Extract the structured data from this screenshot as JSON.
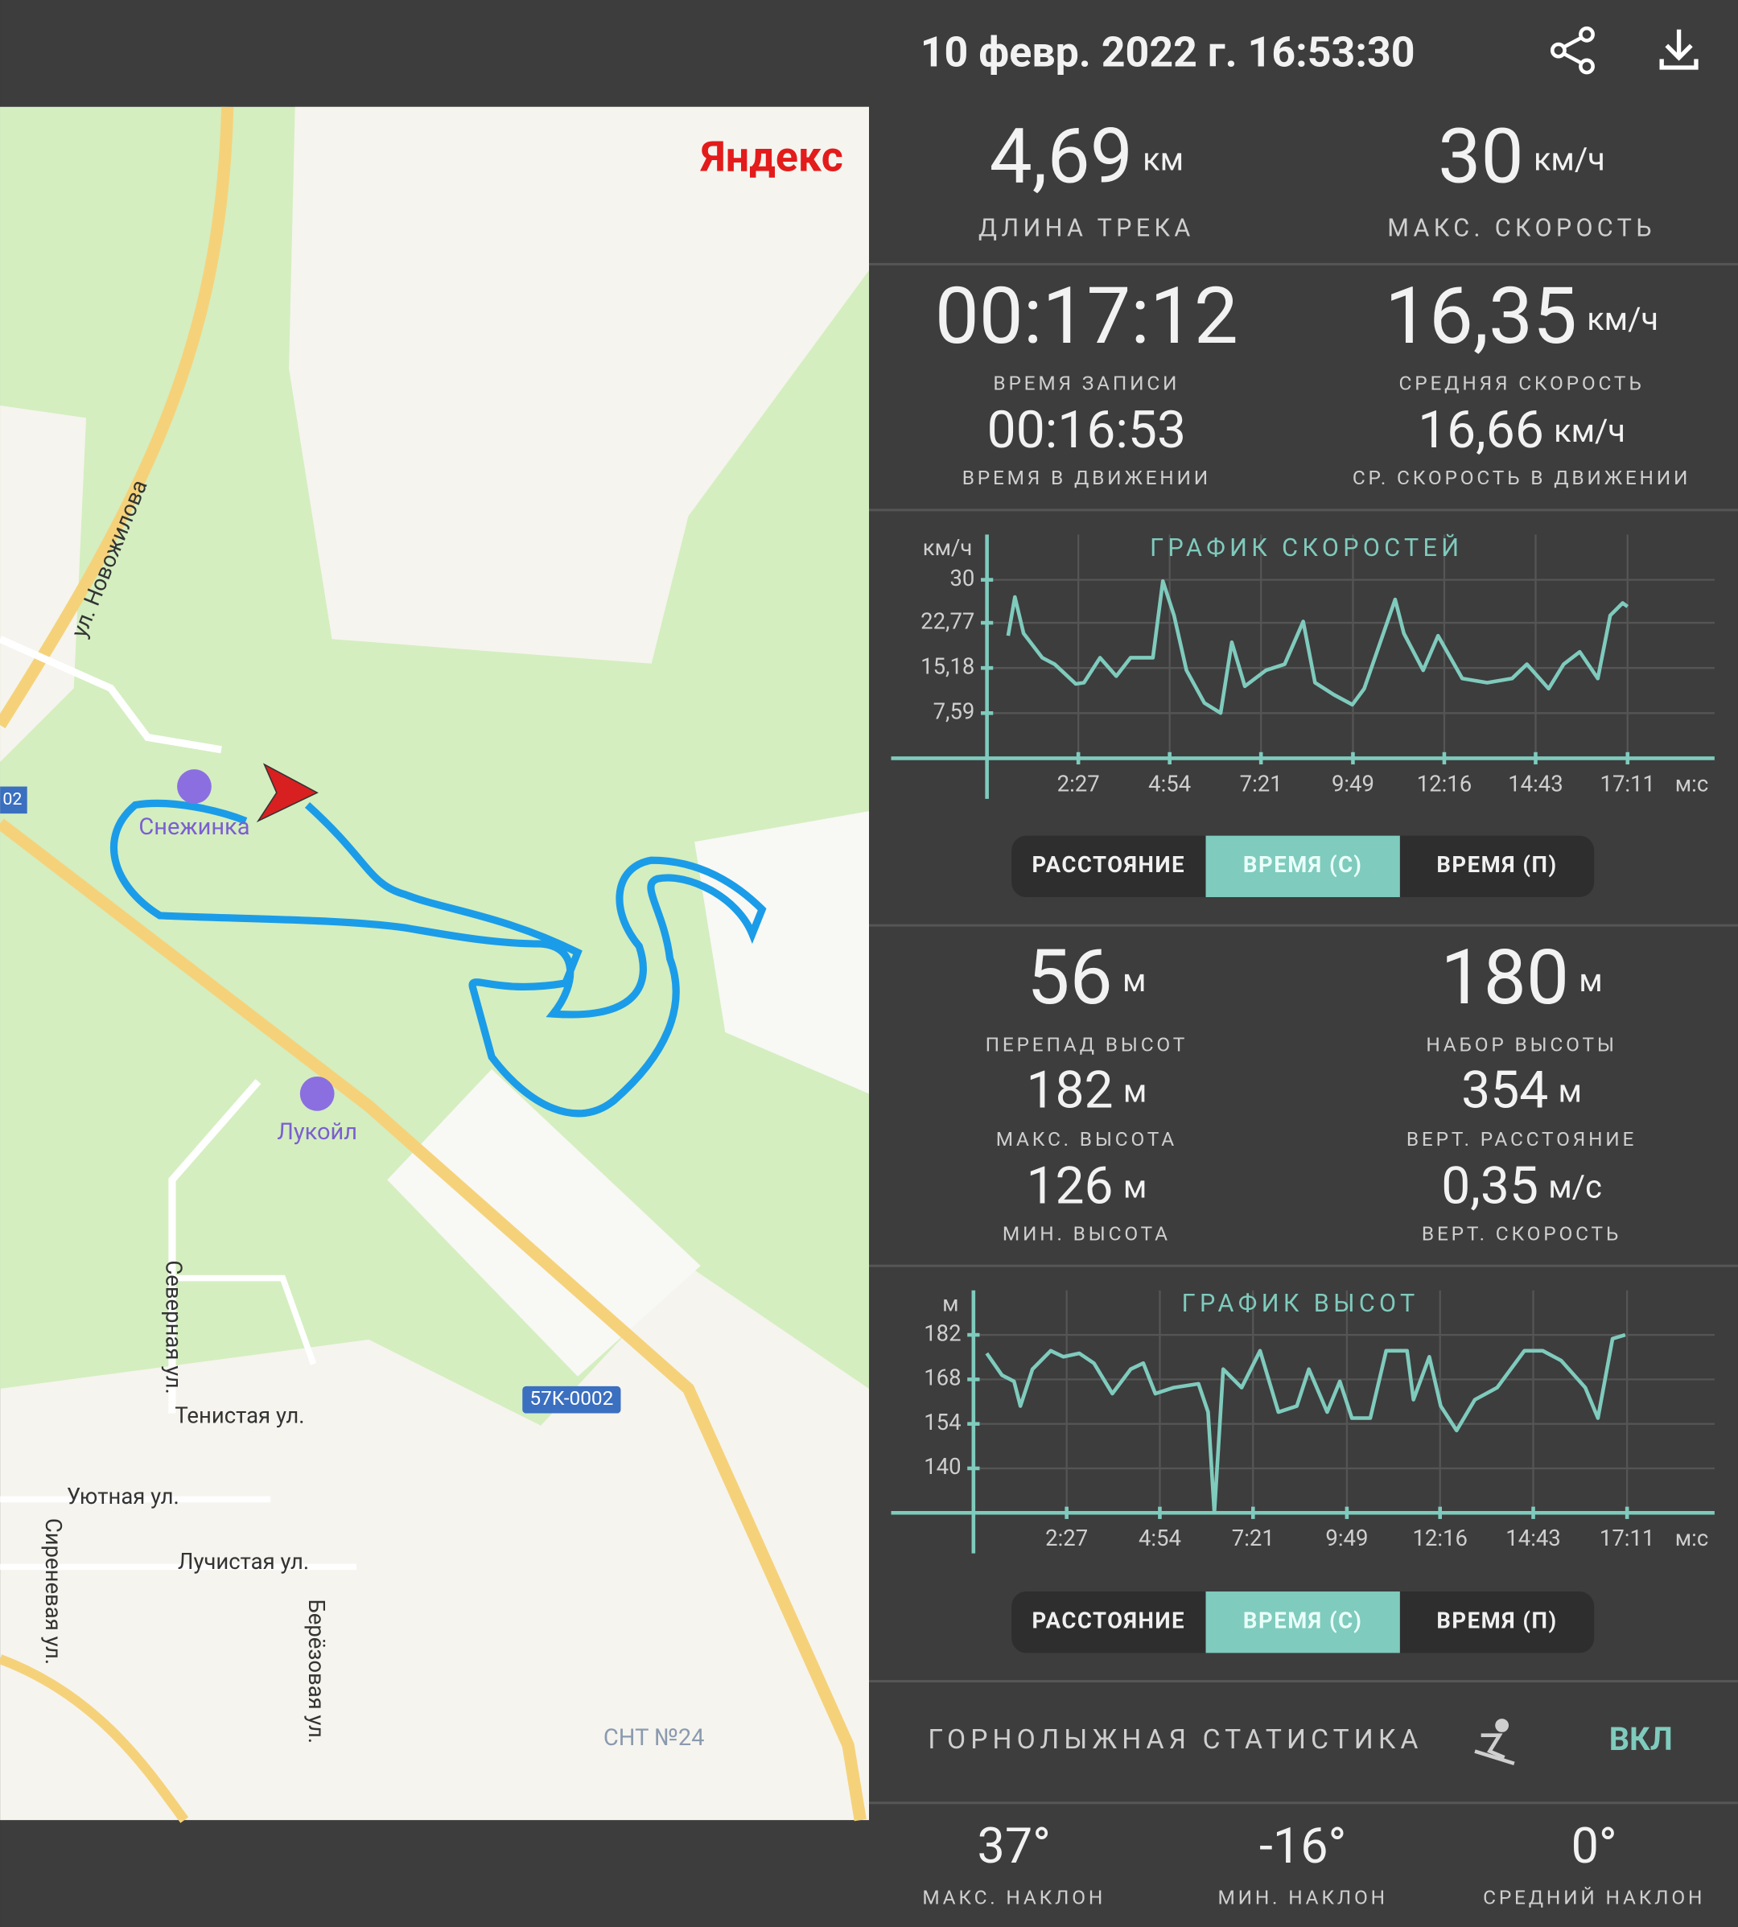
{
  "header": {
    "title": "10 февр. 2022 г. 16:53:30"
  },
  "map": {
    "brand": "Яндекс",
    "labels": [
      "ул. Новожилова",
      "Снежинка",
      "Лукойл",
      "Северная ул.",
      "Тенистая ул.",
      "Уютная ул.",
      "Лучистая ул.",
      "Сиреневая ул.",
      "Берёзовая ул.",
      "57К-0002",
      "СНТ №24",
      "02"
    ]
  },
  "stats": [
    {
      "value": "4,69",
      "unit": "км",
      "label": "ДЛИНА ТРЕКА"
    },
    {
      "value": "30",
      "unit": "км/ч",
      "label": "МАКС. СКОРОСТЬ"
    },
    {
      "value": "00:17:12",
      "unit": "",
      "label": "ВРЕМЯ ЗАПИСИ"
    },
    {
      "value": "16,35",
      "unit": "км/ч",
      "label": "СРЕДНЯЯ СКОРОСТЬ"
    },
    {
      "value": "00:16:53",
      "unit": "",
      "label": "ВРЕМЯ В ДВИЖЕНИИ"
    },
    {
      "value": "16,66",
      "unit": "км/ч",
      "label": "СР. СКОРОСТЬ В ДВИЖЕНИИ"
    }
  ],
  "speed_chart": {
    "type": "line",
    "title": "ГРАФИК СКОРОСТЕЙ",
    "y_label": "км/ч",
    "x_unit": "м:с",
    "color": "#7fcbbd",
    "grid": true,
    "x": [
      34,
      45,
      59,
      89,
      109,
      143,
      156,
      182,
      208,
      231,
      267,
      283,
      301,
      321,
      350,
      376,
      394,
      415,
      449,
      479,
      509,
      528,
      558,
      588,
      607,
      657,
      671,
      702,
      726,
      765,
      805,
      845,
      869,
      904,
      928,
      954,
      983,
      1003,
      1023,
      1031
    ],
    "values": [
      20.6,
      27.1,
      21,
      16.9,
      15.8,
      12.5,
      12.7,
      16.9,
      13.8,
      16.9,
      16.9,
      29.8,
      24,
      14.8,
      9.3,
      7.6,
      19.5,
      12.1,
      14.8,
      15.8,
      23,
      12.7,
      10.7,
      9,
      11.7,
      26.7,
      21,
      14.8,
      20.6,
      13.4,
      12.7,
      13.4,
      15.8,
      11.7,
      15.8,
      17.9,
      13.4,
      24,
      26.1,
      25.5
    ],
    "xlim": [
      0,
      1171
    ],
    "ylim": [
      0,
      37.6
    ],
    "xticks": [
      {
        "value": 147,
        "label": "2:27"
      },
      {
        "value": 294,
        "label": "4:54"
      },
      {
        "value": 441,
        "label": "7:21"
      },
      {
        "value": 589,
        "label": "9:49"
      },
      {
        "value": 736,
        "label": "12:16"
      },
      {
        "value": 883,
        "label": "14:43"
      },
      {
        "value": 1031,
        "label": "17:11"
      }
    ],
    "yticks": [
      {
        "value": 7.59,
        "label": "7,59"
      },
      {
        "value": 15.18,
        "label": "15,18"
      },
      {
        "value": 22.77,
        "label": "22,77"
      },
      30
    ],
    "toggles": [
      "РАССТОЯНИЕ",
      "ВРЕМЯ (С)",
      "ВРЕМЯ (П)"
    ],
    "active_toggle": 1
  },
  "altitude_stats": [
    {
      "value": "56",
      "unit": "м",
      "label": "ПЕРЕПАД ВЫСОТ"
    },
    {
      "value": "180",
      "unit": "м",
      "label": "НАБОР ВЫСОТЫ"
    },
    {
      "value": "182",
      "unit": "м",
      "label": "МАКС. ВЫСОТА"
    },
    {
      "value": "354",
      "unit": "м",
      "label": "ВЕРТ. РАССТОЯНИЕ"
    },
    {
      "value": "126",
      "unit": "м",
      "label": "МИН. ВЫСОТА"
    },
    {
      "value": "0,35",
      "unit": "м/с",
      "label": "ВЕРТ. СКОРОСТЬ"
    }
  ],
  "altitude_chart": {
    "type": "line",
    "title": "ГРАФИК ВЫСОТ",
    "y_label": "м",
    "x_unit": "м:с",
    "color": "#7fcbbd",
    "grid": true,
    "x": [
      21,
      45,
      64,
      74,
      93,
      122,
      142,
      167,
      190,
      219,
      248,
      268,
      287,
      316,
      355,
      370,
      380,
      394,
      423,
      452,
      481,
      510,
      529,
      558,
      578,
      597,
      626,
      651,
      684,
      694,
      719,
      737,
      762,
      791,
      826,
      869,
      898,
      927,
      965,
      985,
      1008,
      1028
    ],
    "values": [
      176.2,
      169.3,
      167.4,
      159.6,
      171.2,
      177,
      175.1,
      176.2,
      173.1,
      163.5,
      171.2,
      173.1,
      163.5,
      165.4,
      166.6,
      157.7,
      126,
      171.2,
      165.4,
      177,
      157.7,
      159.6,
      171.2,
      157.7,
      167.4,
      155.8,
      155.8,
      177,
      177,
      161.6,
      175.1,
      159.6,
      151.9,
      161.6,
      165.4,
      177,
      177,
      173.9,
      165.4,
      155.8,
      180.8,
      182
    ],
    "xlim": [
      0,
      1169
    ],
    "ylim": [
      126,
      196
    ],
    "xticks": [
      {
        "value": 147,
        "label": "2:27"
      },
      {
        "value": 294,
        "label": "4:54"
      },
      {
        "value": 441,
        "label": "7:21"
      },
      {
        "value": 589,
        "label": "9:49"
      },
      {
        "value": 736,
        "label": "12:16"
      },
      {
        "value": 883,
        "label": "14:43"
      },
      {
        "value": 1031,
        "label": "17:11"
      }
    ],
    "yticks": [
      140,
      154,
      168,
      182
    ],
    "toggles": [
      "РАССТОЯНИЕ",
      "ВРЕМЯ (С)",
      "ВРЕМЯ (П)"
    ],
    "active_toggle": 1
  },
  "ski": {
    "label": "ГОРНОЛЫЖНАЯ СТАТИСТИКА",
    "state": "ВКЛ",
    "stats": [
      {
        "value": "37°",
        "label": "МАКС. НАКЛОН"
      },
      {
        "value": "-16°",
        "label": "МИН. НАКЛОН"
      },
      {
        "value": "0°",
        "label": "СРЕДНИЙ НАКЛОН"
      }
    ]
  }
}
